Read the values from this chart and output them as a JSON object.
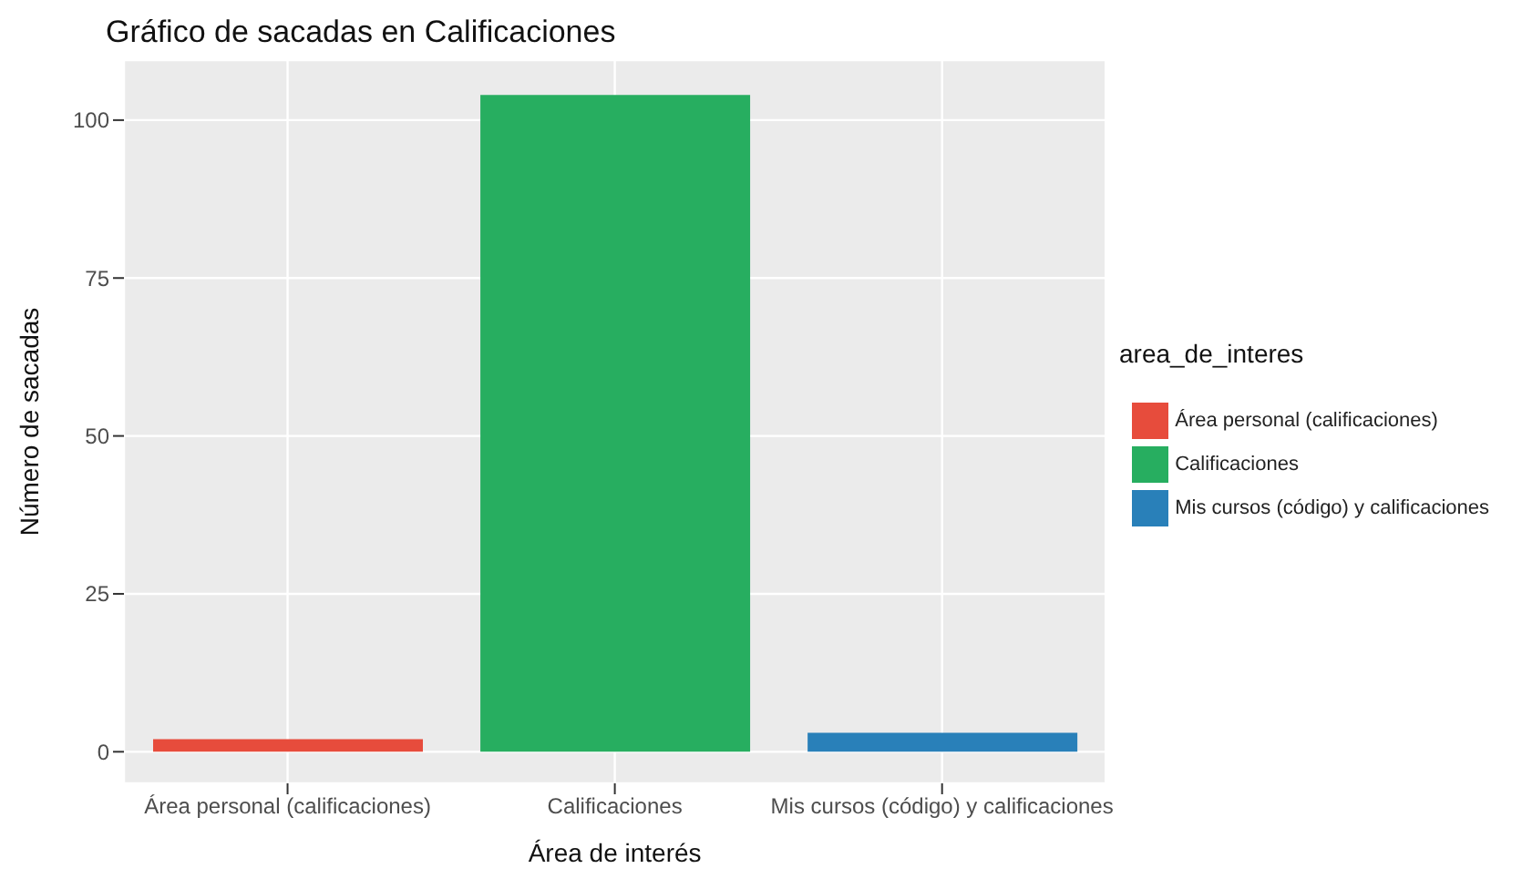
{
  "chart_data": {
    "type": "bar",
    "title": "Gráfico de sacadas en Calificaciones",
    "xlabel": "Área de interés",
    "ylabel": "Número de sacadas",
    "legend_title": "area_de_interes",
    "categories": [
      "Área personal (calificaciones)",
      "Calificaciones",
      "Mis cursos (código) y calificaciones"
    ],
    "series": [
      {
        "name": "Área personal (calificaciones)",
        "color": "#e74c3c",
        "values": [
          2,
          null,
          null
        ]
      },
      {
        "name": "Calificaciones",
        "color": "#27ae60",
        "values": [
          null,
          104,
          null
        ]
      },
      {
        "name": "Mis cursos (código) y calificaciones",
        "color": "#2980b9",
        "values": [
          null,
          null,
          3
        ]
      }
    ],
    "ylim": [
      -5,
      109.5
    ],
    "yticks": [
      0,
      25,
      50,
      75,
      100
    ],
    "grid": true,
    "legend": "right"
  }
}
